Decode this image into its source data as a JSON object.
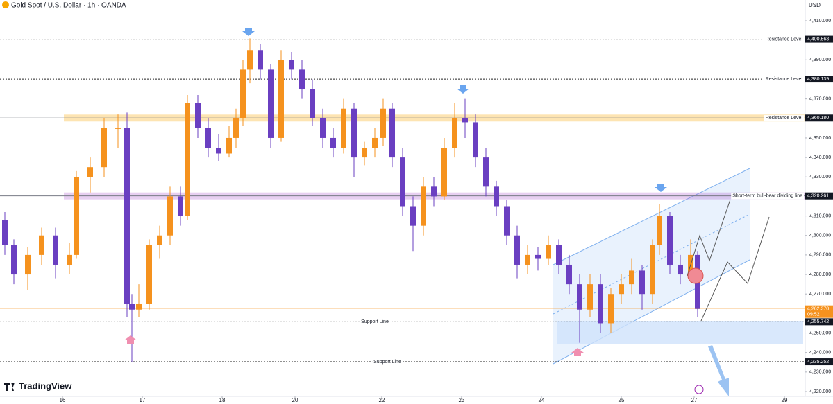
{
  "header": {
    "title": "Gold Spot / U.S. Dollar · 1h · OANDA",
    "currency": "USD",
    "brand": "TradingView"
  },
  "chart_data": {
    "type": "candlestick",
    "up_color": "#f5921e",
    "down_color": "#6a3fc1",
    "xlim": [
      0,
      232
    ],
    "ylim": [
      4220,
      4410
    ],
    "grid": false,
    "xticks": [
      {
        "value": 18,
        "label": "16"
      },
      {
        "value": 41,
        "label": "17"
      },
      {
        "value": 64,
        "label": "18"
      },
      {
        "value": 85,
        "label": "20"
      },
      {
        "value": 110,
        "label": "22"
      },
      {
        "value": 133,
        "label": "23"
      },
      {
        "value": 156,
        "label": "24"
      },
      {
        "value": 179,
        "label": "25"
      },
      {
        "value": 200,
        "label": "27"
      },
      {
        "value": 226,
        "label": "29"
      }
    ],
    "yticks": [
      {
        "value": 4220,
        "label": "4,220.000"
      },
      {
        "value": 4230,
        "label": "4,230.000"
      },
      {
        "value": 4240,
        "label": "4,240.000"
      },
      {
        "value": 4250,
        "label": "4,250.000"
      },
      {
        "value": 4260,
        "label": "4,260.000"
      },
      {
        "value": 4270,
        "label": "4,270.000"
      },
      {
        "value": 4280,
        "label": "4,280.000"
      },
      {
        "value": 4290,
        "label": "4,290.000"
      },
      {
        "value": 4300,
        "label": "4,300.000"
      },
      {
        "value": 4310,
        "label": "4,310.000"
      },
      {
        "value": 4320,
        "label": "4,320.000"
      },
      {
        "value": 4330,
        "label": "4,330.000"
      },
      {
        "value": 4340,
        "label": "4,340.000"
      },
      {
        "value": 4350,
        "label": "4,350.000"
      },
      {
        "value": 4360,
        "label": "4,360.000"
      },
      {
        "value": 4370,
        "label": "4,370.000"
      },
      {
        "value": 4380,
        "label": "4,380.000"
      },
      {
        "value": 4390,
        "label": "4,390.000"
      },
      {
        "value": 4400,
        "label": "4,400.000"
      },
      {
        "value": 4410,
        "label": "4,410.000"
      }
    ],
    "x": [
      1.4,
      4,
      8,
      12,
      16,
      20,
      22,
      26,
      30,
      34,
      36.6,
      38,
      40,
      43,
      46,
      49,
      52,
      54,
      57,
      60,
      63,
      66,
      68,
      70,
      72,
      75,
      78,
      81,
      84,
      87,
      90,
      93,
      96,
      99,
      102,
      105,
      108,
      110.4,
      113,
      116,
      119,
      122,
      125,
      128,
      131,
      134,
      137,
      140,
      143,
      146,
      149,
      152,
      155,
      158,
      161,
      164,
      167,
      170,
      173,
      176,
      179,
      182,
      185,
      188,
      190,
      193,
      196,
      199,
      201
    ],
    "candles": [
      [
        4308,
        4312,
        4290,
        4295
      ],
      [
        4295,
        4298,
        4275,
        4280
      ],
      [
        4280,
        4294,
        4272,
        4290
      ],
      [
        4290,
        4304,
        4285,
        4300
      ],
      [
        4300,
        4304,
        4278,
        4285
      ],
      [
        4285,
        4296,
        4280,
        4290
      ],
      [
        4290,
        4333,
        4288,
        4330
      ],
      [
        4330,
        4340,
        4322,
        4335
      ],
      [
        4335,
        4360,
        4330,
        4355
      ],
      [
        4355,
        4362,
        4345,
        4355
      ],
      [
        4355,
        4363,
        4258,
        4265
      ],
      [
        4265,
        4270,
        4235,
        4262
      ],
      [
        4262,
        4275,
        4258,
        4265
      ],
      [
        4265,
        4298,
        4262,
        4295
      ],
      [
        4295,
        4305,
        4288,
        4300
      ],
      [
        4300,
        4325,
        4295,
        4320
      ],
      [
        4320,
        4325,
        4305,
        4310
      ],
      [
        4310,
        4372,
        4308,
        4368
      ],
      [
        4368,
        4372,
        4350,
        4355
      ],
      [
        4355,
        4360,
        4340,
        4345
      ],
      [
        4345,
        4352,
        4338,
        4342
      ],
      [
        4342,
        4356,
        4340,
        4350
      ],
      [
        4350,
        4365,
        4345,
        4360
      ],
      [
        4360,
        4390,
        4356,
        4385
      ],
      [
        4385,
        4401,
        4378,
        4395
      ],
      [
        4395,
        4398,
        4380,
        4385
      ],
      [
        4385,
        4388,
        4345,
        4350
      ],
      [
        4350,
        4395,
        4348,
        4390
      ],
      [
        4390,
        4394,
        4380,
        4385
      ],
      [
        4385,
        4390,
        4370,
        4375
      ],
      [
        4375,
        4380,
        4356,
        4360
      ],
      [
        4360,
        4365,
        4345,
        4350
      ],
      [
        4350,
        4355,
        4340,
        4345
      ],
      [
        4345,
        4370,
        4342,
        4365
      ],
      [
        4365,
        4368,
        4330,
        4340
      ],
      [
        4340,
        4348,
        4336,
        4345
      ],
      [
        4345,
        4355,
        4340,
        4350
      ],
      [
        4350,
        4370,
        4346,
        4365
      ],
      [
        4365,
        4368,
        4335,
        4340
      ],
      [
        4340,
        4345,
        4310,
        4315
      ],
      [
        4315,
        4320,
        4292,
        4305
      ],
      [
        4305,
        4330,
        4300,
        4325
      ],
      [
        4325,
        4330,
        4315,
        4320
      ],
      [
        4320,
        4350,
        4318,
        4345
      ],
      [
        4345,
        4368,
        4340,
        4360
      ],
      [
        4360,
        4370,
        4350,
        4358
      ],
      [
        4358,
        4362,
        4335,
        4340
      ],
      [
        4340,
        4345,
        4320,
        4325
      ],
      [
        4325,
        4328,
        4310,
        4315
      ],
      [
        4315,
        4318,
        4295,
        4300
      ],
      [
        4300,
        4305,
        4278,
        4285
      ],
      [
        4285,
        4295,
        4280,
        4290
      ],
      [
        4290,
        4294,
        4282,
        4288
      ],
      [
        4288,
        4300,
        4285,
        4295
      ],
      [
        4295,
        4298,
        4280,
        4285
      ],
      [
        4285,
        4290,
        4270,
        4275
      ],
      [
        4275,
        4280,
        4245,
        4262
      ],
      [
        4262,
        4280,
        4258,
        4275
      ],
      [
        4275,
        4280,
        4250,
        4255
      ],
      [
        4255,
        4273,
        4250,
        4270
      ],
      [
        4270,
        4280,
        4265,
        4275
      ],
      [
        4275,
        4288,
        4270,
        4282
      ],
      [
        4282,
        4285,
        4262,
        4270
      ],
      [
        4270,
        4298,
        4265,
        4295
      ],
      [
        4295,
        4316,
        4290,
        4310
      ],
      [
        4310,
        4312,
        4280,
        4285
      ],
      [
        4285,
        4290,
        4275,
        4280
      ],
      [
        4280,
        4298,
        4276,
        4290
      ],
      [
        4290,
        4292,
        4258,
        4262.37
      ]
    ],
    "levels": [
      {
        "name": "Resistance Level",
        "price": {
          "value": 4400.563,
          "label": "4,400.563"
        }
      },
      {
        "name": "Resistance Level",
        "price": {
          "value": 4380.139,
          "label": "4,380.139"
        }
      },
      {
        "name": "Resistance Level",
        "price": {
          "value": 4360.18,
          "label": "4,360.180"
        },
        "band": "#f7a600"
      },
      {
        "name": "Short-term bull-bear dividing line",
        "price": {
          "value": 4320.261,
          "label": "4,320.261"
        },
        "band": "#b05fd0"
      },
      {
        "name": "Support Line",
        "price": {
          "value": 4255.742,
          "label": "4,255.742"
        }
      },
      {
        "name": "Support Line",
        "price": {
          "value": 4235.252,
          "label": "4,235.252"
        }
      }
    ],
    "last_price": {
      "value": 4262.37,
      "label": "4,262.370"
    },
    "countdown": "09:52"
  }
}
